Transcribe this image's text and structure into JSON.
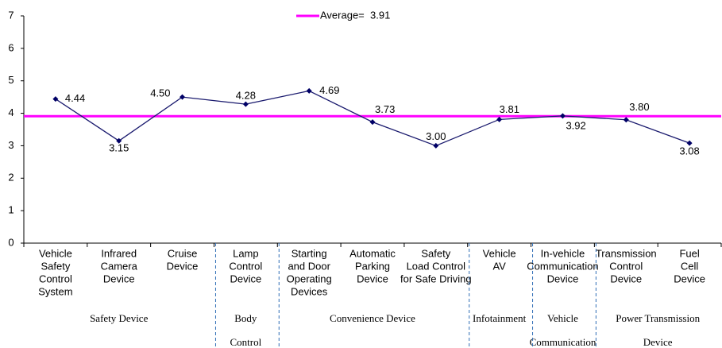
{
  "chart_data": {
    "type": "line",
    "groups": [
      {
        "label": [
          "Safety Device"
        ],
        "categories": [
          [
            "Vehicle",
            "Safety",
            "Control",
            "System"
          ],
          [
            "Infrared",
            "Camera",
            "Device"
          ],
          [
            "Cruise",
            "Device"
          ]
        ]
      },
      {
        "label": [
          "Body",
          "Control"
        ],
        "categories": [
          [
            "Lamp",
            "Control",
            "Device"
          ]
        ]
      },
      {
        "label": [
          "Convenience Device"
        ],
        "categories": [
          [
            "Starting",
            "and Door",
            "Operating",
            "Devices"
          ],
          [
            "Automatic",
            "Parking",
            "Device"
          ],
          [
            "Safety",
            "Load Control",
            "for Safe Driving"
          ]
        ]
      },
      {
        "label": [
          "Infotainment"
        ],
        "categories": [
          [
            "Vehicle",
            "AV"
          ]
        ]
      },
      {
        "label": [
          "Vehicle",
          "Communication"
        ],
        "categories": [
          [
            "In-vehicle",
            "Communication",
            "Device"
          ]
        ]
      },
      {
        "label": [
          "Power Transmission",
          "Device"
        ],
        "categories": [
          [
            "Transmission",
            "Control",
            "Device"
          ],
          [
            "Fuel",
            "Cell",
            "Device"
          ]
        ]
      }
    ],
    "series": [
      {
        "color": "#1a1a6e",
        "values": [
          4.44,
          3.15,
          4.5,
          4.28,
          4.69,
          3.73,
          3.0,
          3.81,
          3.92,
          3.8,
          3.08
        ],
        "value_labels": [
          "4.44",
          "3.15",
          "4.50",
          "4.28",
          "4.69",
          "3.73",
          "3.00",
          "3.81",
          "3.92",
          "3.80",
          "3.08"
        ]
      }
    ],
    "average": {
      "name": "Average=",
      "value": 3.91,
      "color": "#ff00ff"
    },
    "ylim": [
      0,
      7
    ],
    "yticks": [
      0,
      1,
      2,
      3,
      4,
      5,
      6,
      7
    ]
  }
}
